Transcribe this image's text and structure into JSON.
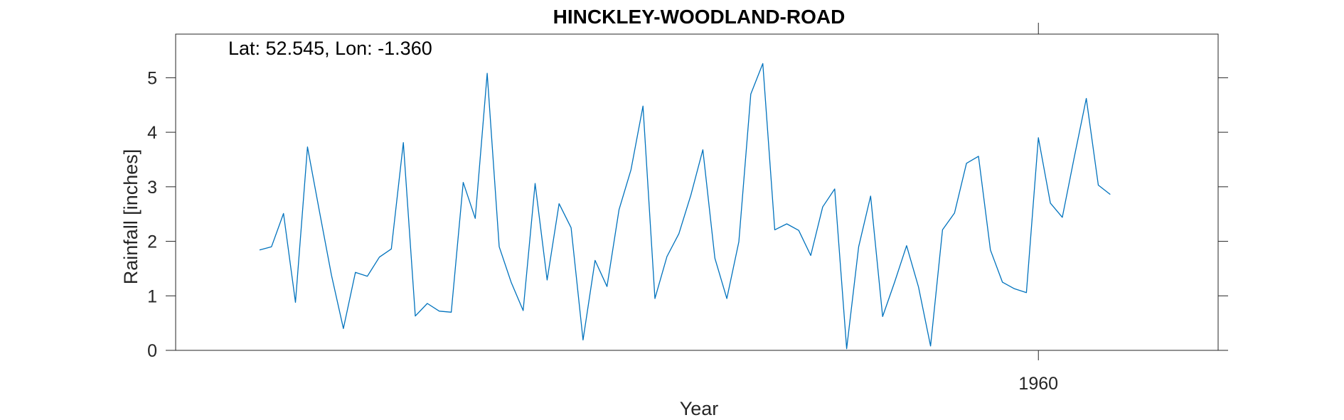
{
  "chart_data": {
    "type": "line",
    "title": "HINCKLEY-WOODLAND-ROAD",
    "annotation": "Lat: 52.545, Lon: -1.360",
    "xlabel": "Year",
    "ylabel": "Rainfall [inches]",
    "xlim": [
      1888,
      1975
    ],
    "ylim": [
      0,
      5.8
    ],
    "x_ticks": [
      1960
    ],
    "y_ticks": [
      0,
      1,
      2,
      3,
      4,
      5
    ],
    "grid": false,
    "series": [
      {
        "name": "rainfall",
        "color": "#0072BD",
        "x": [
          1895,
          1896,
          1897,
          1898,
          1899,
          1900,
          1901,
          1902,
          1903,
          1904,
          1905,
          1906,
          1907,
          1908,
          1909,
          1910,
          1911,
          1912,
          1913,
          1914,
          1915,
          1916,
          1917,
          1918,
          1919,
          1920,
          1921,
          1922,
          1923,
          1924,
          1925,
          1926,
          1927,
          1928,
          1929,
          1930,
          1931,
          1932,
          1933,
          1934,
          1935,
          1936,
          1937,
          1938,
          1939,
          1940,
          1941,
          1942,
          1943,
          1944,
          1945,
          1946,
          1947,
          1948,
          1949,
          1950,
          1951,
          1952,
          1953,
          1954,
          1955,
          1956,
          1957,
          1958,
          1959,
          1960,
          1961,
          1962,
          1963,
          1964,
          1965,
          1966
        ],
        "y": [
          1.84,
          1.9,
          2.51,
          0.88,
          3.73,
          2.55,
          1.38,
          0.4,
          1.43,
          1.36,
          1.71,
          1.86,
          3.81,
          0.63,
          0.86,
          0.72,
          0.7,
          3.08,
          2.42,
          5.08,
          1.9,
          1.25,
          0.73,
          3.06,
          1.29,
          2.69,
          2.25,
          0.19,
          1.65,
          1.17,
          2.58,
          3.31,
          4.48,
          0.95,
          1.72,
          2.14,
          2.85,
          3.68,
          1.69,
          0.95,
          1.99,
          4.7,
          5.26,
          2.21,
          2.32,
          2.2,
          1.74,
          2.63,
          2.96,
          0.03,
          1.9,
          2.83,
          0.62,
          1.25,
          1.92,
          1.16,
          0.08,
          2.21,
          2.52,
          3.43,
          3.56,
          1.84,
          1.25,
          1.13,
          1.06,
          3.9,
          2.7,
          2.44,
          3.55,
          4.62,
          3.03,
          2.86
        ]
      }
    ]
  }
}
